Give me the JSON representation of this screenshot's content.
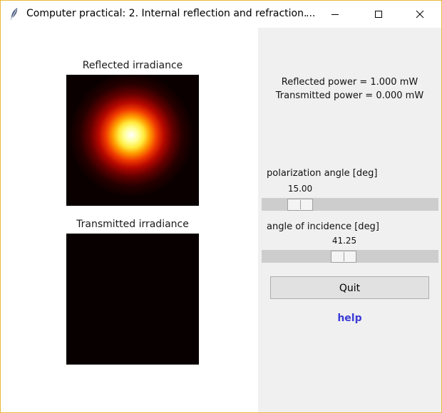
{
  "window": {
    "title": "Computer practical: 2. Internal reflection and refraction.",
    "title_ellipsis": "...",
    "border_color": "#e8b93a"
  },
  "plots": {
    "reflected_title": "Reflected irradiance",
    "transmitted_title": "Transmitted irradiance"
  },
  "power": {
    "reflected": "Reflected power = 1.000 mW",
    "transmitted": "Transmitted power = 0.000 mW"
  },
  "sliders": {
    "polarization": {
      "label": "polarization angle [deg]",
      "value": "15.00"
    },
    "incidence": {
      "label": "angle of incidence [deg]",
      "value": "41.25"
    }
  },
  "buttons": {
    "quit_label": "Quit"
  },
  "links": {
    "help_label": "help",
    "help_color": "#3b3bd6"
  },
  "icons": {
    "app": "feather-icon",
    "minimize": "minimize-icon",
    "maximize": "maximize-icon",
    "close": "close-icon"
  }
}
